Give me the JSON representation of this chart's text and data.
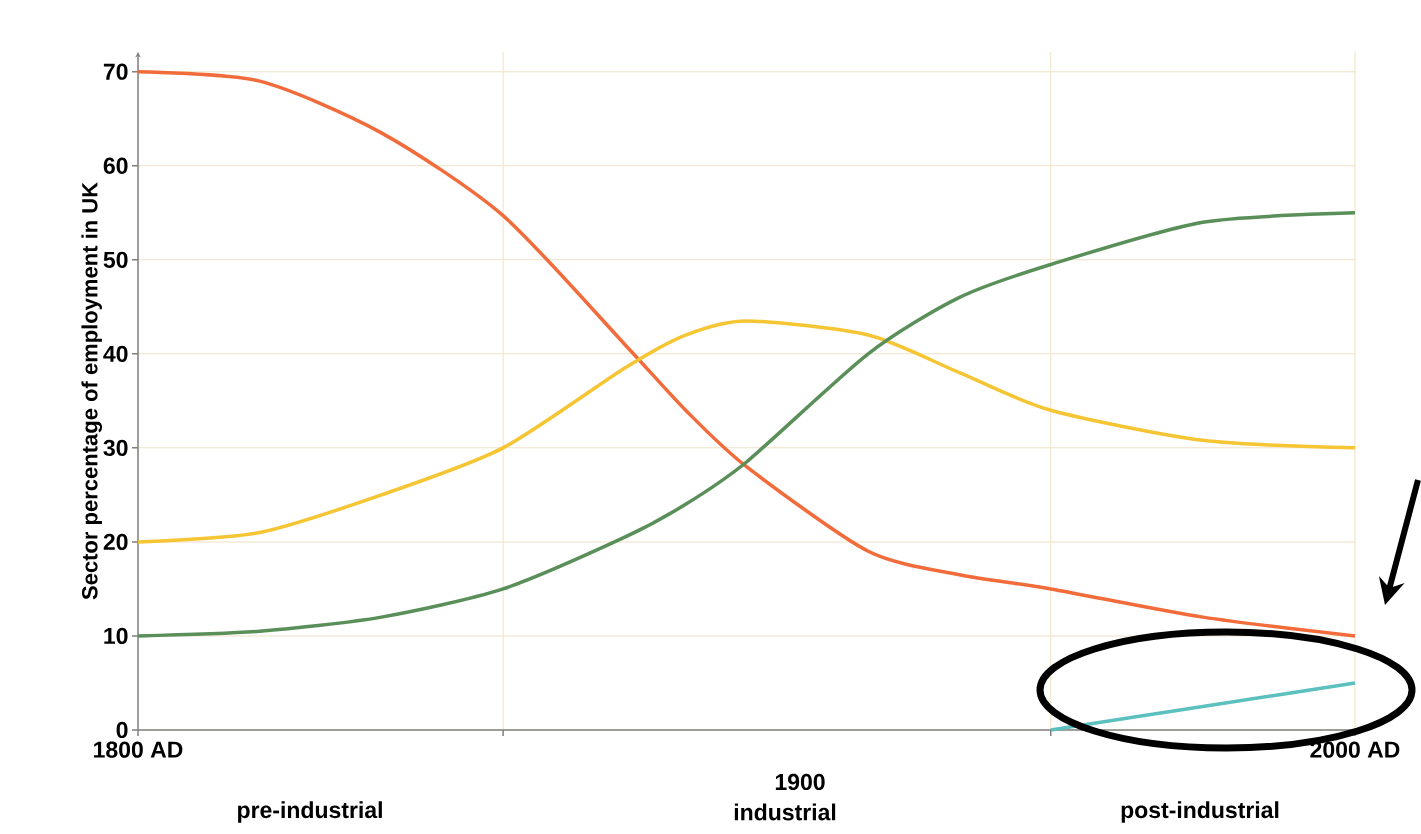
{
  "chart_data": {
    "type": "line",
    "ylabel": "Sector percentage of employment in UK",
    "x": [
      1800,
      1820,
      1840,
      1860,
      1880,
      1890,
      1900,
      1920,
      1935,
      1950,
      1975,
      2000
    ],
    "series": [
      {
        "color": "#f26b3a",
        "values": [
          70,
          69,
          63.5,
          54.7,
          41,
          34,
          28,
          19,
          16.5,
          15,
          12,
          10
        ]
      },
      {
        "color": "#f5c533",
        "values": [
          20,
          21,
          25,
          30,
          38.5,
          42,
          43.5,
          42,
          38,
          34,
          30.8,
          30
        ]
      },
      {
        "color": "#5a8f5a",
        "values": [
          10,
          10.5,
          12,
          15,
          20.5,
          24,
          28.5,
          40,
          46,
          49.5,
          54,
          55
        ]
      },
      {
        "color": "#5bc0be",
        "x": [
          1950,
          1975,
          2000
        ],
        "values": [
          0,
          2.5,
          5
        ]
      }
    ],
    "xlim": [
      1800,
      2000
    ],
    "ylim": [
      0,
      70
    ],
    "xticks": [
      {
        "value": 1800,
        "label": "1800 AD"
      },
      {
        "value": 1860,
        "label": null
      },
      {
        "value": 1950,
        "label": null
      },
      {
        "value": 2000,
        "label": "2000 AD"
      }
    ],
    "yticks": [
      0,
      10,
      20,
      30,
      40,
      50,
      60,
      70
    ],
    "grid": true,
    "annotations": [
      "1900",
      "pre-industrial",
      "industrial",
      "post-industrial"
    ]
  }
}
